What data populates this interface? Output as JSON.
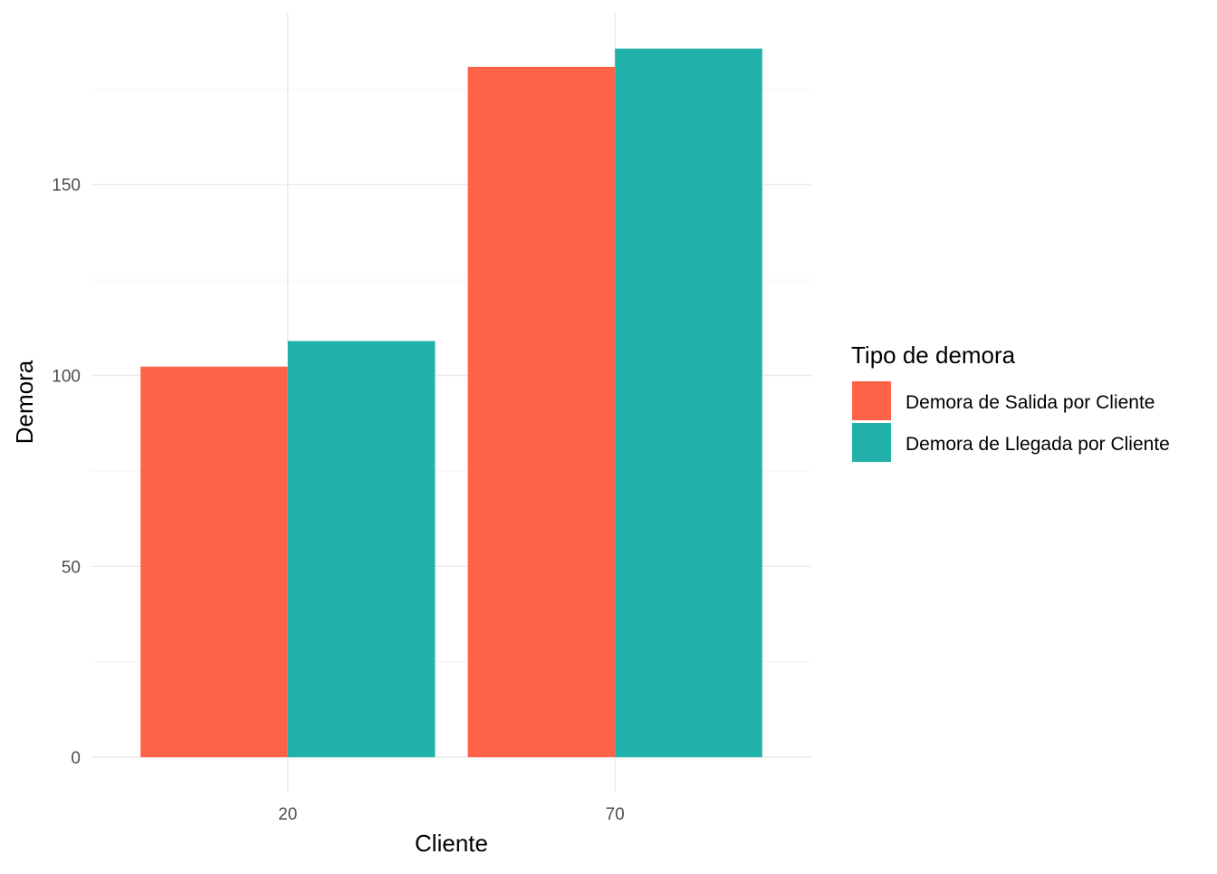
{
  "chart_data": {
    "type": "bar",
    "categories": [
      "20",
      "70"
    ],
    "series": [
      {
        "name": "Demora de Salida por Cliente",
        "color": "#FF6347",
        "values": [
          102.3,
          180.8
        ]
      },
      {
        "name": "Demora de Llegada por Cliente",
        "color": "#20B2AA",
        "values": [
          109.0,
          185.6
        ]
      }
    ],
    "xlabel": "Cliente",
    "ylabel": "Demora",
    "ylim": [
      -9,
      195
    ],
    "yticks": [
      0,
      50,
      100,
      150
    ],
    "yticklabels": [
      "0",
      "50",
      "100",
      "150"
    ],
    "grid": true,
    "legend": {
      "title": "Tipo de demora",
      "position": "right"
    }
  }
}
